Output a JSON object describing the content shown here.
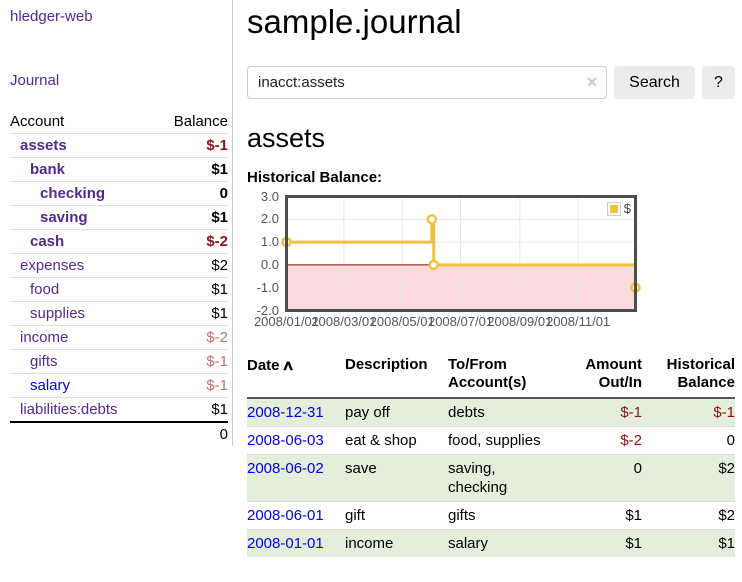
{
  "colors": {
    "link_visited": "#552a8b",
    "link_unvisited": "#0000e0",
    "negative_strong": "#8b1215",
    "negative_soft": "#c0706d",
    "row_shade": "#e3efdb",
    "series_yellow": "#edc240",
    "zero_line": "#8b0000",
    "negative_fill": "#fbdbdb",
    "grid_line": "#e8e8e8",
    "chart_border": "#4d4d4d"
  },
  "sidebar": {
    "brand": "hledger-web",
    "nav": {
      "journal": "Journal"
    },
    "accounts_table": {
      "headers": {
        "account": "Account",
        "balance": "Balance"
      },
      "rows": [
        {
          "name": "assets",
          "depth": 1,
          "bold": true,
          "balance": "$-1",
          "amount_tone": "negative-strong",
          "link_tone": "visited"
        },
        {
          "name": "bank",
          "depth": 2,
          "bold": true,
          "balance": "$1",
          "amount_tone": "normal",
          "link_tone": "visited"
        },
        {
          "name": "checking",
          "depth": 3,
          "bold": true,
          "balance": "0",
          "amount_tone": "normal",
          "link_tone": "visited"
        },
        {
          "name": "saving",
          "depth": 3,
          "bold": true,
          "balance": "$1",
          "amount_tone": "normal",
          "link_tone": "visited"
        },
        {
          "name": "cash",
          "depth": 2,
          "bold": true,
          "balance": "$-2",
          "amount_tone": "negative-strong",
          "link_tone": "visited"
        },
        {
          "name": "expenses",
          "depth": 1,
          "bold": false,
          "balance": "$2",
          "amount_tone": "normal",
          "link_tone": "visited"
        },
        {
          "name": "food",
          "depth": 2,
          "bold": false,
          "balance": "$1",
          "amount_tone": "normal",
          "link_tone": "visited"
        },
        {
          "name": "supplies",
          "depth": 2,
          "bold": false,
          "balance": "$1",
          "amount_tone": "normal",
          "link_tone": "visited"
        },
        {
          "name": "income",
          "depth": 1,
          "bold": false,
          "balance": "$-2",
          "amount_tone": "negative-soft",
          "link_tone": "visited"
        },
        {
          "name": "gifts",
          "depth": 2,
          "bold": false,
          "balance": "$-1",
          "amount_tone": "negative-soft",
          "link_tone": "visited"
        },
        {
          "name": "salary",
          "depth": 2,
          "bold": false,
          "balance": "$-1",
          "amount_tone": "negative-soft",
          "link_tone": "unvisited"
        },
        {
          "name": "liabilities:debts",
          "depth": 1,
          "bold": false,
          "balance": "$1",
          "amount_tone": "normal",
          "link_tone": "visited"
        }
      ],
      "total": "0"
    }
  },
  "main": {
    "title": "sample.journal",
    "search": {
      "value": "inacct:assets",
      "clear_icon": "✕",
      "search_label": "Search",
      "help_label": "?"
    },
    "account_heading": "assets",
    "chart_heading": "Historical Balance:"
  },
  "chart_data": {
    "type": "line",
    "title": "Historical Balance",
    "step": true,
    "x_start": "2008-01-01",
    "x_end": "2008-12-31",
    "ylim": [
      -2,
      3
    ],
    "y_ticks": [
      "3.0",
      "2.0",
      "1.0",
      "0.0",
      "-1.0",
      "-2.0"
    ],
    "y_tick_values": [
      3,
      2,
      1,
      0,
      -1,
      -2
    ],
    "x_tick_labels": [
      "2008/01/01",
      "2008/03/01",
      "2008/05/01",
      "2008/07/01",
      "2008/09/01",
      "2008/11/01"
    ],
    "x_tick_dates": [
      "2008-01-01",
      "2008-03-01",
      "2008-05-01",
      "2008-07-01",
      "2008-09-01",
      "2008-11-01"
    ],
    "grid": true,
    "legend": {
      "position": "top-right",
      "label": "$"
    },
    "marker": "open-circle",
    "series": [
      {
        "name": "$",
        "color": "#edc240",
        "points": [
          [
            "2008-01-01",
            1
          ],
          [
            "2008-06-01",
            2
          ],
          [
            "2008-06-03",
            0
          ],
          [
            "2008-12-31",
            -1
          ]
        ]
      }
    ]
  },
  "register": {
    "headers": {
      "date": "Date",
      "sort_icon": "∧",
      "description": "Description",
      "accounts": "To/From Account(s)",
      "amount": "Amount Out/In",
      "balance": "Historical Balance"
    },
    "rows": [
      {
        "date": "2008-12-31",
        "description": "pay off",
        "accounts": "debts",
        "amount": "$-1",
        "balance": "$-1",
        "amount_negative": true,
        "balance_negative": true,
        "shaded": true
      },
      {
        "date": "2008-06-03",
        "description": "eat & shop",
        "accounts": "food, supplies",
        "amount": "$-2",
        "balance": "0",
        "amount_negative": true,
        "balance_negative": false,
        "shaded": false
      },
      {
        "date": "2008-06-02",
        "description": "save",
        "accounts": "saving, checking",
        "amount": "0",
        "balance": "$2",
        "amount_negative": false,
        "balance_negative": false,
        "shaded": true
      },
      {
        "date": "2008-06-01",
        "description": "gift",
        "accounts": "gifts",
        "amount": "$1",
        "balance": "$2",
        "amount_negative": false,
        "balance_negative": false,
        "shaded": false
      },
      {
        "date": "2008-01-01",
        "description": "income",
        "accounts": "salary",
        "amount": "$1",
        "balance": "$1",
        "amount_negative": false,
        "balance_negative": false,
        "shaded": true
      }
    ]
  }
}
